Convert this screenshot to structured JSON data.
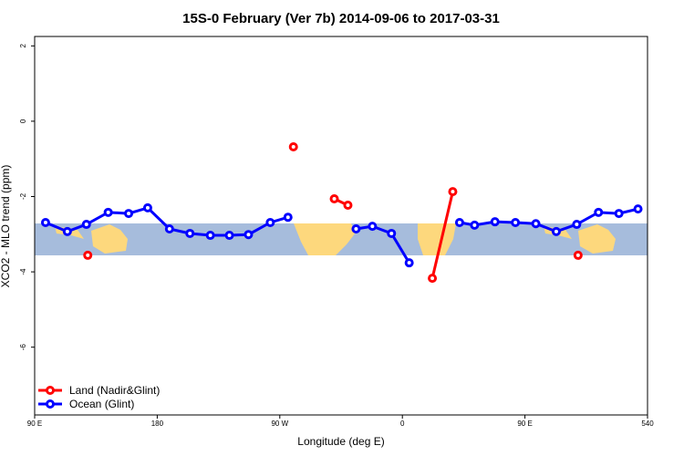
{
  "chart_data": {
    "type": "line",
    "title": "15S-0 February (Ver 7b)   2014-09-06 to 2017-03-31",
    "x_label": "Longitude (deg E)",
    "y_label": "XCO2 - MLO trend (ppm)",
    "xlim": [
      90,
      540
    ],
    "xticks": [
      {
        "value": 90,
        "label": "90 E"
      },
      180,
      {
        "value": 270,
        "label": "90 W"
      },
      {
        "value": 360,
        "label": "0"
      },
      {
        "value": 450,
        "label": "90 E"
      },
      540
    ],
    "ylim": [
      -7.8,
      2.25
    ],
    "yticks": [
      -6,
      -4,
      -2,
      0,
      2
    ],
    "legend": "bottom-left",
    "series": [
      {
        "name": "Land (Nadir&Glint)",
        "color": "#ff0000",
        "x": [
          129,
          null,
          280,
          null,
          310,
          320,
          null,
          382,
          397,
          null,
          489
        ],
        "values": [
          -3.56,
          null,
          -0.68,
          null,
          -2.06,
          -2.23,
          null,
          -4.17,
          -1.87,
          null,
          -3.56
        ]
      },
      {
        "name": "Ocean (Glint)",
        "color": "#0000ff",
        "x": [
          98,
          114,
          128,
          144,
          159,
          173,
          189,
          204,
          219,
          233,
          247,
          263,
          276,
          null,
          326,
          338,
          352,
          365,
          null,
          402,
          413,
          428,
          443,
          458,
          473,
          488,
          504,
          519,
          533
        ],
        "values": [
          -2.69,
          -2.93,
          -2.74,
          -2.42,
          -2.45,
          -2.3,
          -2.86,
          -2.98,
          -3.03,
          -3.03,
          -3.01,
          -2.69,
          -2.55,
          null,
          -2.86,
          -2.79,
          -2.98,
          -3.76,
          null,
          -2.69,
          -2.76,
          -2.67,
          -2.69,
          -2.72,
          -2.93,
          -2.74,
          -2.42,
          -2.45,
          -2.33
        ]
      }
    ]
  }
}
